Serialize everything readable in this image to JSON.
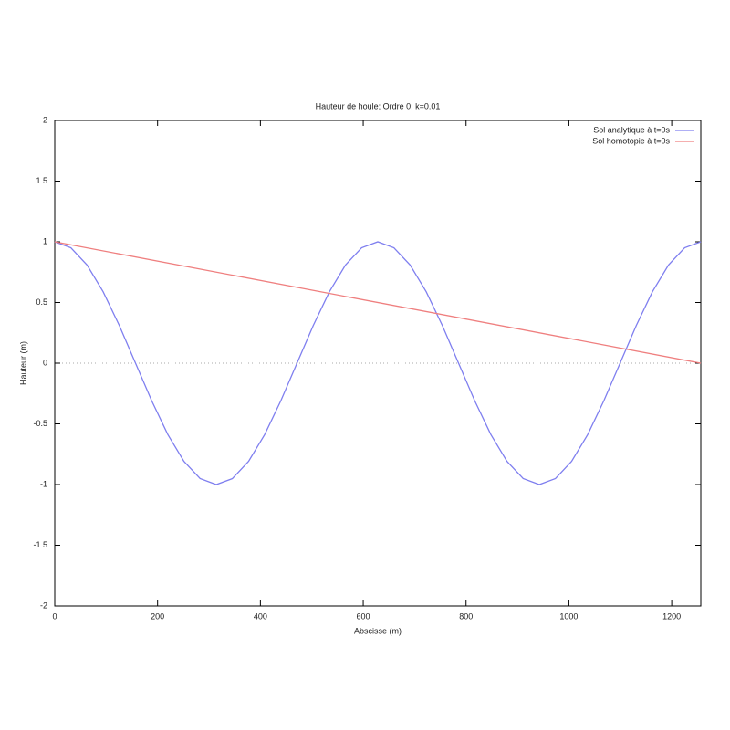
{
  "chart_data": {
    "type": "line",
    "title": "Hauteur de houle; Ordre 0; k=0.01",
    "xlabel": "Abscisse (m)",
    "ylabel": "Hauteur (m)",
    "xlim": [
      0,
      1256.6
    ],
    "ylim": [
      -2,
      2
    ],
    "xticks": [
      0,
      200,
      400,
      600,
      800,
      1000,
      1200
    ],
    "yticks": [
      -2,
      -1.5,
      -1,
      -0.5,
      0,
      0.5,
      1,
      1.5,
      2
    ],
    "zero_line": true,
    "legend": "top-right",
    "series": [
      {
        "name": "Sol analytique à t=0s",
        "color": "#7f7fef",
        "x": [
          0,
          31.4,
          62.8,
          94.2,
          125.7,
          157.1,
          188.5,
          219.9,
          251.3,
          282.7,
          314.2,
          345.6,
          377.0,
          408.4,
          439.8,
          471.2,
          502.7,
          534.1,
          565.5,
          596.9,
          628.3,
          659.7,
          691.2,
          722.6,
          754.0,
          785.4,
          816.8,
          848.2,
          879.6,
          911.1,
          942.5,
          973.9,
          1005.3,
          1036.7,
          1068.1,
          1099.6,
          1131.0,
          1162.4,
          1193.8,
          1225.2,
          1256.6
        ],
        "values": [
          1,
          0.951,
          0.809,
          0.588,
          0.309,
          0,
          -0.309,
          -0.588,
          -0.809,
          -0.951,
          -1,
          -0.951,
          -0.809,
          -0.588,
          -0.309,
          0,
          0.309,
          0.588,
          0.809,
          0.951,
          1,
          0.951,
          0.809,
          0.588,
          0.309,
          0,
          -0.309,
          -0.588,
          -0.809,
          -0.951,
          -1,
          -0.951,
          -0.809,
          -0.588,
          -0.309,
          0,
          0.309,
          0.588,
          0.809,
          0.951,
          1
        ]
      },
      {
        "name": "Sol homotopie à t=0s",
        "color": "#ef7f7f",
        "x": [
          0,
          1256.6
        ],
        "values": [
          1,
          0
        ]
      }
    ]
  }
}
